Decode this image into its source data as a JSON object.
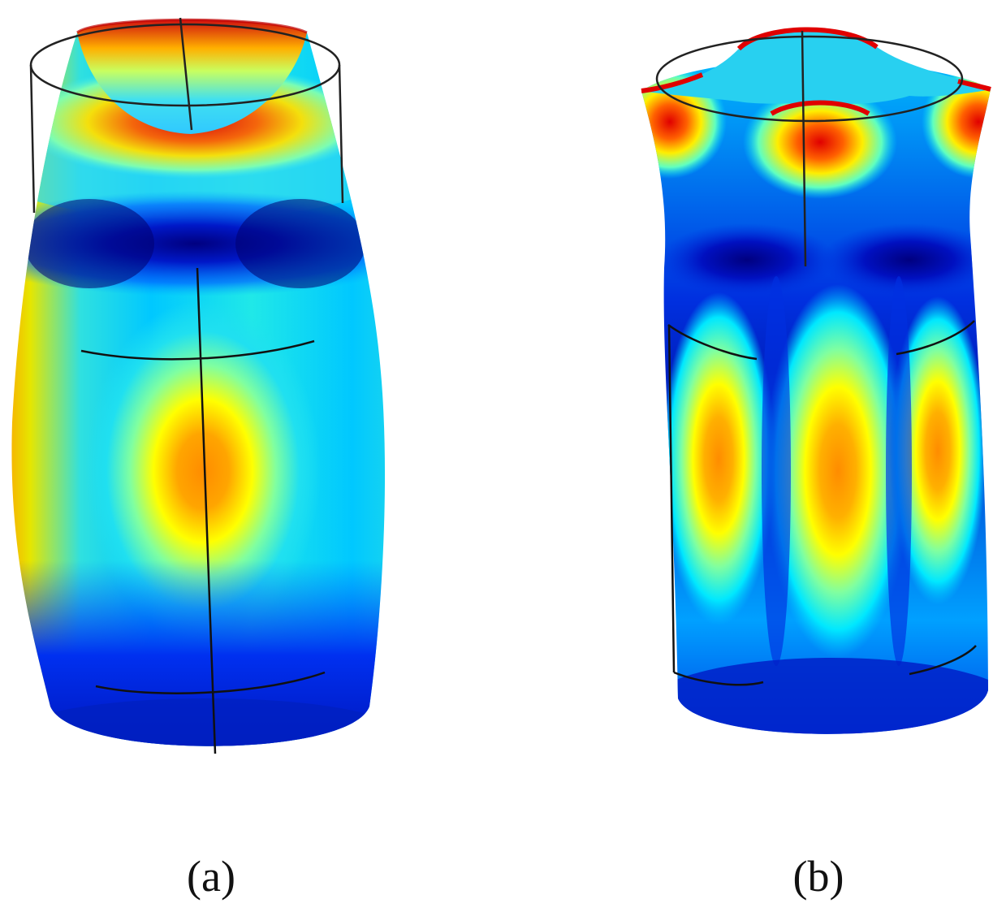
{
  "figure": {
    "panels": [
      {
        "id": "a",
        "caption": "(a)"
      },
      {
        "id": "b",
        "caption": "(b)"
      }
    ],
    "colormap": [
      "#00008f",
      "#0000ff",
      "#00bfff",
      "#00ffff",
      "#80ff80",
      "#ffff00",
      "#ff8000",
      "#ff0000",
      "#cc0000"
    ]
  }
}
